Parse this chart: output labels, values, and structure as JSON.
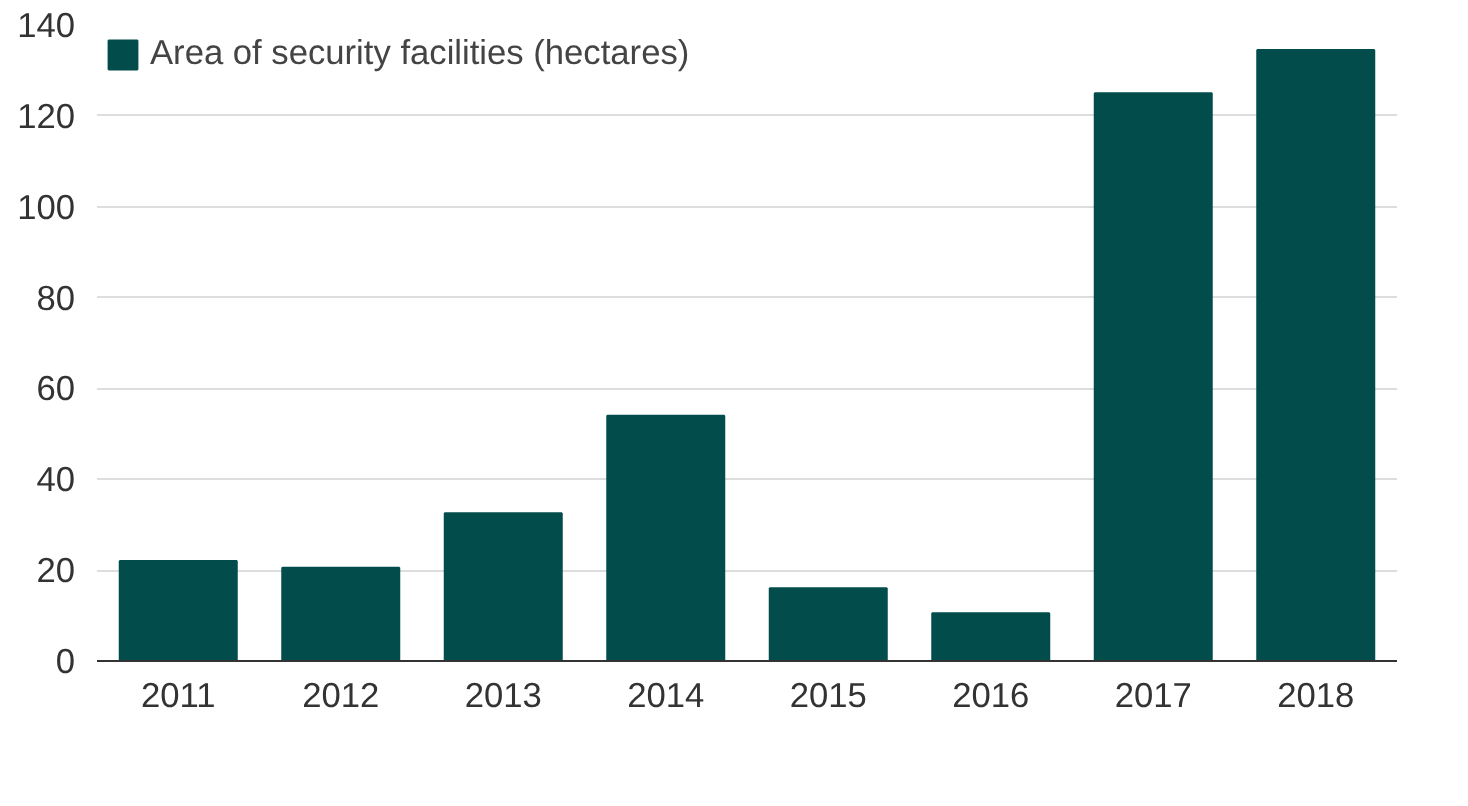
{
  "chart_data": {
    "type": "bar",
    "categories": [
      "2011",
      "2012",
      "2013",
      "2014",
      "2015",
      "2016",
      "2017",
      "2018"
    ],
    "series": [
      {
        "name": "Area of security facilities (hectares)",
        "color": "#034c4c",
        "values": [
          22,
          20.5,
          32.5,
          54,
          16,
          10.5,
          125,
          134.5
        ]
      }
    ],
    "ylim": [
      0,
      140
    ],
    "yticks": [
      0,
      20,
      40,
      60,
      80,
      100,
      120,
      140
    ],
    "grid": "y",
    "legend": "top left"
  }
}
